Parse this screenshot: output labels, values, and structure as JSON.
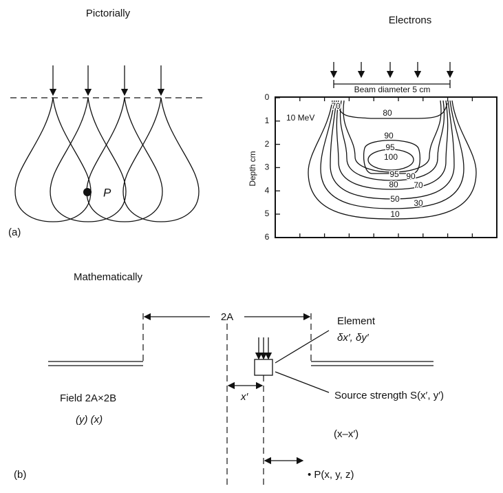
{
  "panel_a": {
    "title_left": "Pictorially",
    "title_right": "Electrons",
    "point_label": "P",
    "label": "(a)",
    "beam_label": "Beam diameter 5 cm",
    "energy": "10 MeV",
    "axis_label": "Depth cm",
    "depth_ticks": [
      "0",
      "1",
      "2",
      "3",
      "4",
      "5",
      "6"
    ],
    "isodose_labels": [
      "70",
      "80",
      "90",
      "95",
      "100",
      "95",
      "90",
      "80",
      "70",
      "50",
      "30",
      "10"
    ]
  },
  "panel_b": {
    "title": "Mathematically",
    "width_label": "2A",
    "element": "Element",
    "element_size": "δx′, δy′",
    "field": "Field 2A×2B",
    "axes": "(y)   (x)",
    "offset": "x′",
    "source": "Source strength S(x′, y′)",
    "distance": "(x–x′)",
    "point": "• P(x, y, z)",
    "label": "(b)"
  }
}
